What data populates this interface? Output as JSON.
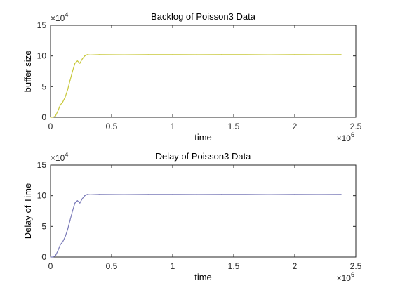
{
  "chart_data": [
    {
      "type": "line",
      "title": "Backlog of Poisson3 Data",
      "xlabel": "time",
      "ylabel": "buffer size",
      "xlim": [
        0,
        2500000
      ],
      "ylim": [
        0,
        150000
      ],
      "x_ticks": [
        0,
        500000,
        1000000,
        1500000,
        2000000,
        2500000
      ],
      "x_tick_labels": [
        "0",
        "0.5",
        "1",
        "1.5",
        "2",
        "2.5"
      ],
      "y_ticks": [
        0,
        50000,
        100000,
        150000
      ],
      "y_tick_labels": [
        "0",
        "5",
        "10",
        "15"
      ],
      "x_exponent_base": "×10",
      "x_exponent_power": "6",
      "y_exponent_base": "×10",
      "y_exponent_power": "4",
      "grid": false,
      "series": [
        {
          "color": "#c8c83a",
          "x": [
            0,
            20000,
            40000,
            60000,
            80000,
            100000,
            120000,
            140000,
            160000,
            180000,
            200000,
            220000,
            240000,
            260000,
            280000,
            300000,
            320000,
            400000,
            600000,
            800000,
            1000000,
            1200000,
            1400000,
            1600000,
            1800000,
            2000000,
            2200000,
            2380000
          ],
          "y": [
            0,
            0,
            2000,
            10000,
            20000,
            25000,
            33000,
            45000,
            60000,
            75000,
            88000,
            92000,
            88000,
            95000,
            100000,
            102000,
            101500,
            102000,
            101800,
            102000,
            102100,
            101900,
            102000,
            102000,
            101800,
            102000,
            101900,
            102000
          ]
        }
      ]
    },
    {
      "type": "line",
      "title": "Delay of Poisson3 Data",
      "xlabel": "time",
      "ylabel": "Delay of Time",
      "xlim": [
        0,
        2500000
      ],
      "ylim": [
        0,
        150000
      ],
      "x_ticks": [
        0,
        500000,
        1000000,
        1500000,
        2000000,
        2500000
      ],
      "x_tick_labels": [
        "0",
        "0.5",
        "1",
        "1.5",
        "2",
        "2.5"
      ],
      "y_ticks": [
        0,
        50000,
        100000,
        150000
      ],
      "y_tick_labels": [
        "0",
        "5",
        "10",
        "15"
      ],
      "x_exponent_base": "×10",
      "x_exponent_power": "6",
      "y_exponent_base": "×10",
      "y_exponent_power": "4",
      "grid": false,
      "series": [
        {
          "color": "#7a7ab8",
          "x": [
            0,
            20000,
            40000,
            60000,
            80000,
            100000,
            120000,
            140000,
            160000,
            180000,
            200000,
            220000,
            240000,
            260000,
            280000,
            300000,
            320000,
            400000,
            600000,
            800000,
            1000000,
            1200000,
            1400000,
            1600000,
            1800000,
            2000000,
            2200000,
            2380000
          ],
          "y": [
            0,
            0,
            2000,
            10000,
            20000,
            25000,
            33000,
            45000,
            60000,
            75000,
            88000,
            92000,
            88000,
            95000,
            100000,
            102000,
            101500,
            102000,
            101800,
            102000,
            102100,
            101900,
            102000,
            102000,
            101800,
            102000,
            101900,
            102000
          ]
        }
      ]
    }
  ]
}
